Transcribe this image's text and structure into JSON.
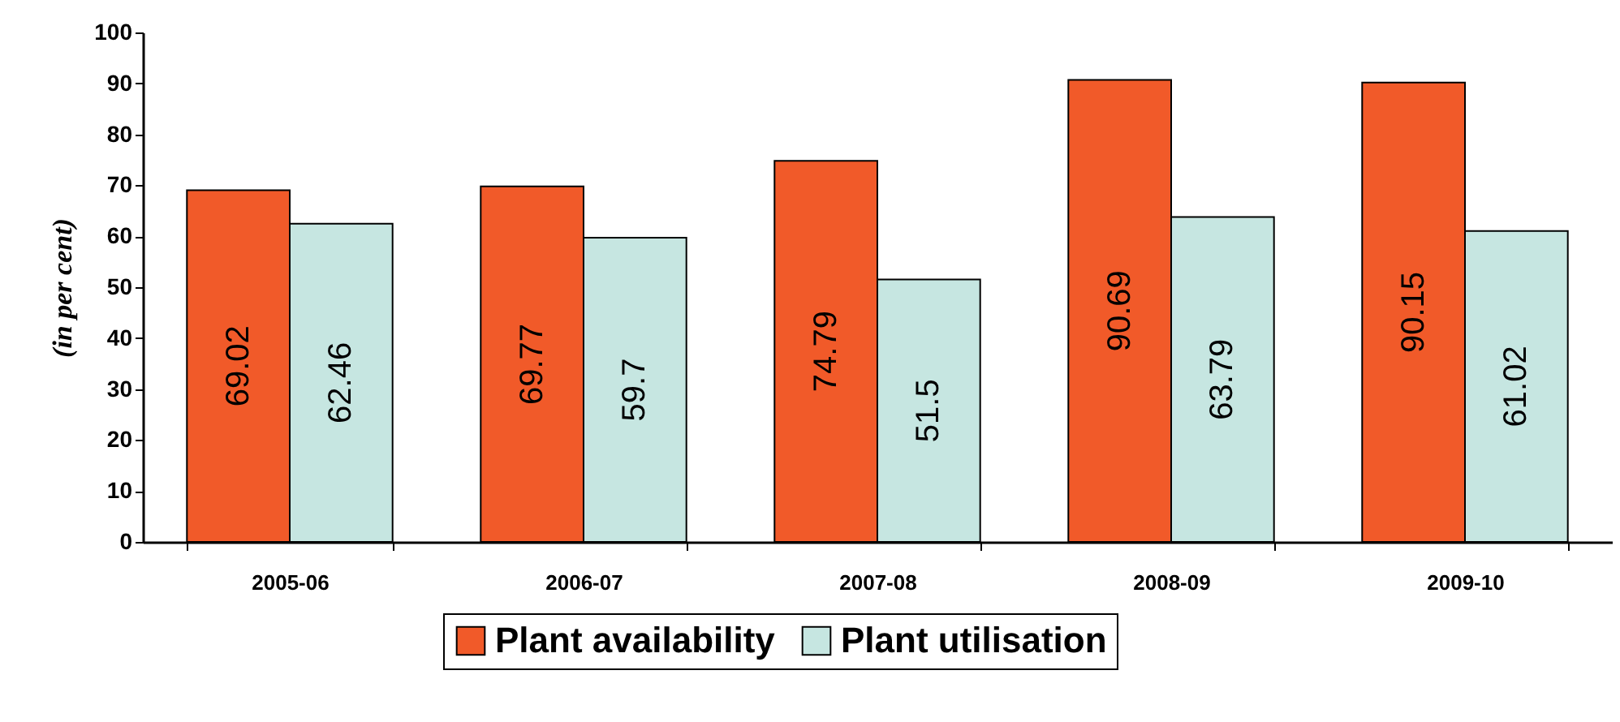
{
  "chart_data": {
    "type": "bar",
    "ylabel": "(in per cent)",
    "categories": [
      "2005-06",
      "2006-07",
      "2007-08",
      "2008-09",
      "2009-10"
    ],
    "series": [
      {
        "name": "Plant availability",
        "color": "#f15a29",
        "values": [
          69.02,
          69.77,
          74.79,
          90.69,
          90.15
        ]
      },
      {
        "name": "Plant utilisation",
        "color": "#c6e6e1",
        "values": [
          62.46,
          59.7,
          51.5,
          63.79,
          61.02
        ]
      }
    ],
    "ylim": [
      0,
      100
    ],
    "yticks": [
      0,
      10,
      20,
      30,
      40,
      50,
      60,
      70,
      80,
      90,
      100
    ],
    "grid": false,
    "legend": "bottom",
    "data_labels": true
  }
}
